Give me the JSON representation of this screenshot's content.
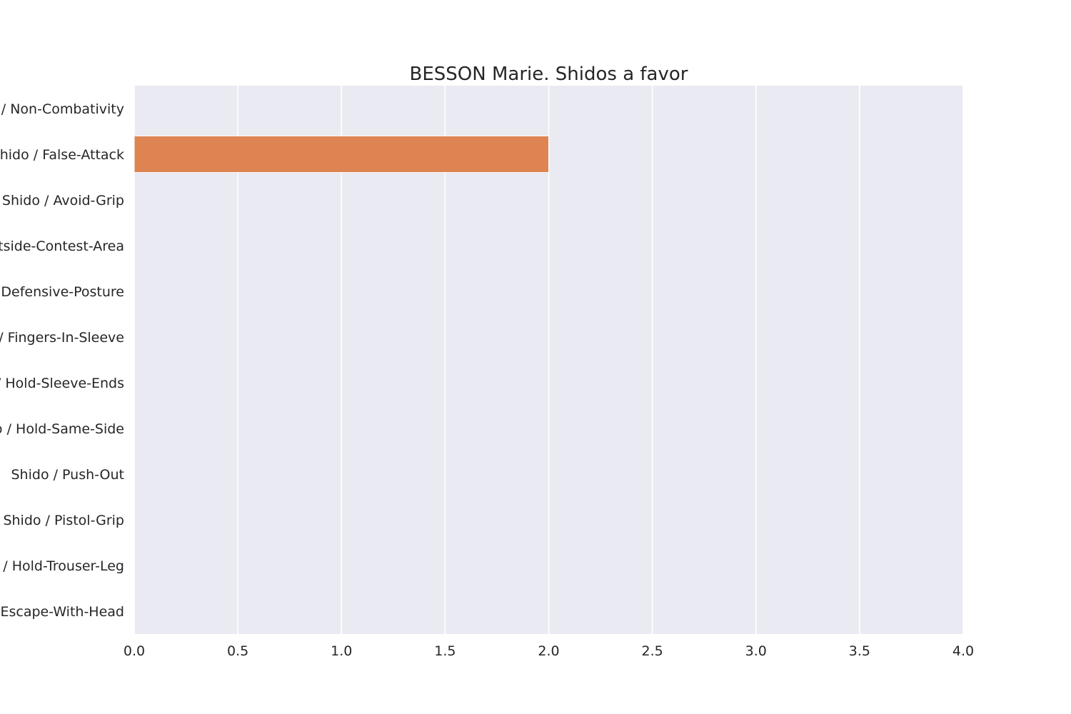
{
  "chart_data": {
    "type": "bar",
    "orientation": "horizontal",
    "title": "BESSON Marie. Shidos a favor",
    "xlabel": "",
    "ylabel": "",
    "xlim": [
      0,
      4
    ],
    "x_ticks": [
      "0.0",
      "0.5",
      "1.0",
      "1.5",
      "2.0",
      "2.5",
      "3.0",
      "3.5",
      "4.0"
    ],
    "categories": [
      "Shido / Non-Combativity",
      "Shido / False-Attack",
      "Shido / Avoid-Grip",
      "Shido / Outside-Contest-Area",
      "Shido / Defensive-Posture",
      "Shido / Fingers-In-Sleeve",
      "Shido / Hold-Sleeve-Ends",
      "Shido / Hold-Same-Side",
      "Shido / Push-Out",
      "Shido / Pistol-Grip",
      "Shido / Hold-Trouser-Leg",
      "Shido / Escape-With-Head"
    ],
    "values": [
      0,
      2,
      0,
      0,
      0,
      0,
      0,
      0,
      0,
      0,
      0,
      0
    ],
    "bar_colors": [
      "#4c72b0",
      "#dd8452",
      "#55a868",
      "#c44e52",
      "#8172b3",
      "#937860",
      "#da8bc3",
      "#8c8c8c",
      "#ccb974",
      "#64b5cd",
      "#4c72b0",
      "#dd8452"
    ],
    "background_color": "#eaeaf2",
    "grid": true,
    "legend": "none"
  }
}
